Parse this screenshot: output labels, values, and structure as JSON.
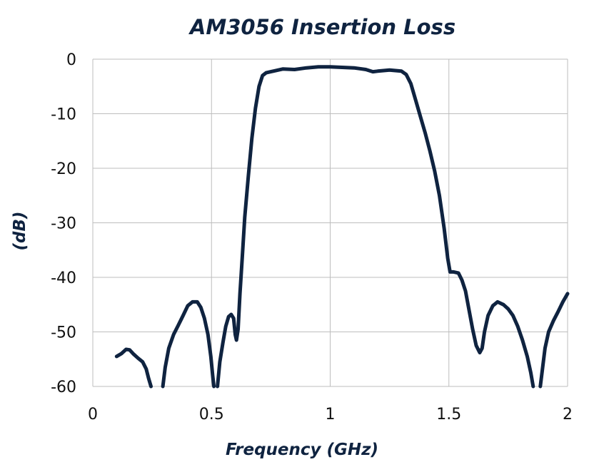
{
  "chart_data": {
    "type": "line",
    "title": "AM3056 Insertion Loss",
    "xlabel": "Frequency (GHz)",
    "ylabel": "(dB)",
    "xlim": [
      0,
      2
    ],
    "ylim": [
      -60,
      0
    ],
    "xticks": [
      {
        "value": 0,
        "label": "0"
      },
      {
        "value": 0.5,
        "label": "0.5"
      },
      {
        "value": 1,
        "label": "1"
      },
      {
        "value": 1.5,
        "label": "1.5"
      },
      {
        "value": 2,
        "label": "2"
      }
    ],
    "yticks": [
      {
        "value": 0,
        "label": "0"
      },
      {
        "value": -10,
        "label": "-10"
      },
      {
        "value": -20,
        "label": "-20"
      },
      {
        "value": -30,
        "label": "-30"
      },
      {
        "value": -40,
        "label": "-40"
      },
      {
        "value": -50,
        "label": "-50"
      },
      {
        "value": -60,
        "label": "-60"
      }
    ],
    "grid": true,
    "legend": "none",
    "line_color": "#0f2340",
    "series": [
      {
        "segments": [
          [
            [
              0.1,
              -54.5
            ],
            [
              0.12,
              -54.0
            ],
            [
              0.14,
              -53.2
            ],
            [
              0.155,
              -53.3
            ],
            [
              0.17,
              -54.0
            ],
            [
              0.19,
              -54.8
            ],
            [
              0.21,
              -55.5
            ],
            [
              0.225,
              -56.8
            ],
            [
              0.235,
              -58.5
            ],
            [
              0.245,
              -60.0
            ]
          ],
          [
            [
              0.295,
              -60.0
            ],
            [
              0.305,
              -56.5
            ],
            [
              0.32,
              -53.0
            ],
            [
              0.34,
              -50.5
            ],
            [
              0.36,
              -48.8
            ],
            [
              0.38,
              -47.0
            ],
            [
              0.4,
              -45.2
            ],
            [
              0.42,
              -44.5
            ],
            [
              0.44,
              -44.5
            ],
            [
              0.455,
              -45.5
            ],
            [
              0.47,
              -47.5
            ],
            [
              0.485,
              -50.5
            ],
            [
              0.497,
              -54.5
            ],
            [
              0.505,
              -58.0
            ],
            [
              0.51,
              -60.0
            ]
          ],
          [
            [
              0.525,
              -60.0
            ],
            [
              0.535,
              -55.5
            ],
            [
              0.548,
              -52.0
            ],
            [
              0.56,
              -49.0
            ],
            [
              0.572,
              -47.2
            ],
            [
              0.583,
              -46.8
            ],
            [
              0.593,
              -47.5
            ],
            [
              0.6,
              -50.5
            ],
            [
              0.605,
              -51.5
            ],
            [
              0.612,
              -49.5
            ],
            [
              0.62,
              -43.0
            ],
            [
              0.63,
              -36.0
            ],
            [
              0.64,
              -29.0
            ],
            [
              0.655,
              -21.5
            ],
            [
              0.67,
              -14.5
            ],
            [
              0.685,
              -9.0
            ],
            [
              0.7,
              -5.0
            ],
            [
              0.715,
              -3.0
            ],
            [
              0.73,
              -2.5
            ],
            [
              0.76,
              -2.2
            ],
            [
              0.8,
              -1.8
            ],
            [
              0.85,
              -1.9
            ],
            [
              0.9,
              -1.6
            ],
            [
              0.95,
              -1.4
            ],
            [
              1.0,
              -1.4
            ],
            [
              1.05,
              -1.5
            ],
            [
              1.1,
              -1.6
            ],
            [
              1.15,
              -1.9
            ],
            [
              1.18,
              -2.3
            ],
            [
              1.2,
              -2.2
            ],
            [
              1.25,
              -2.0
            ],
            [
              1.3,
              -2.2
            ],
            [
              1.32,
              -2.8
            ],
            [
              1.34,
              -4.5
            ],
            [
              1.36,
              -7.5
            ],
            [
              1.38,
              -10.5
            ],
            [
              1.4,
              -13.5
            ],
            [
              1.42,
              -16.8
            ],
            [
              1.44,
              -20.5
            ],
            [
              1.46,
              -25.0
            ],
            [
              1.48,
              -31.0
            ],
            [
              1.495,
              -36.5
            ],
            [
              1.505,
              -39.0
            ],
            [
              1.52,
              -39.0
            ],
            [
              1.54,
              -39.2
            ],
            [
              1.555,
              -40.5
            ],
            [
              1.57,
              -42.5
            ],
            [
              1.585,
              -46.0
            ],
            [
              1.6,
              -49.5
            ],
            [
              1.615,
              -52.5
            ],
            [
              1.63,
              -53.8
            ],
            [
              1.64,
              -53.0
            ],
            [
              1.65,
              -50.0
            ],
            [
              1.665,
              -47.0
            ],
            [
              1.685,
              -45.2
            ],
            [
              1.705,
              -44.5
            ],
            [
              1.73,
              -45.0
            ],
            [
              1.75,
              -45.8
            ],
            [
              1.77,
              -47.0
            ],
            [
              1.79,
              -49.0
            ],
            [
              1.81,
              -51.5
            ],
            [
              1.83,
              -54.5
            ],
            [
              1.845,
              -57.5
            ],
            [
              1.855,
              -60.0
            ]
          ],
          [
            [
              1.885,
              -60.0
            ],
            [
              1.895,
              -56.5
            ],
            [
              1.905,
              -53.0
            ],
            [
              1.92,
              -50.0
            ],
            [
              1.94,
              -48.0
            ],
            [
              1.96,
              -46.3
            ],
            [
              1.98,
              -44.5
            ],
            [
              2.0,
              -43.0
            ]
          ]
        ]
      }
    ]
  }
}
